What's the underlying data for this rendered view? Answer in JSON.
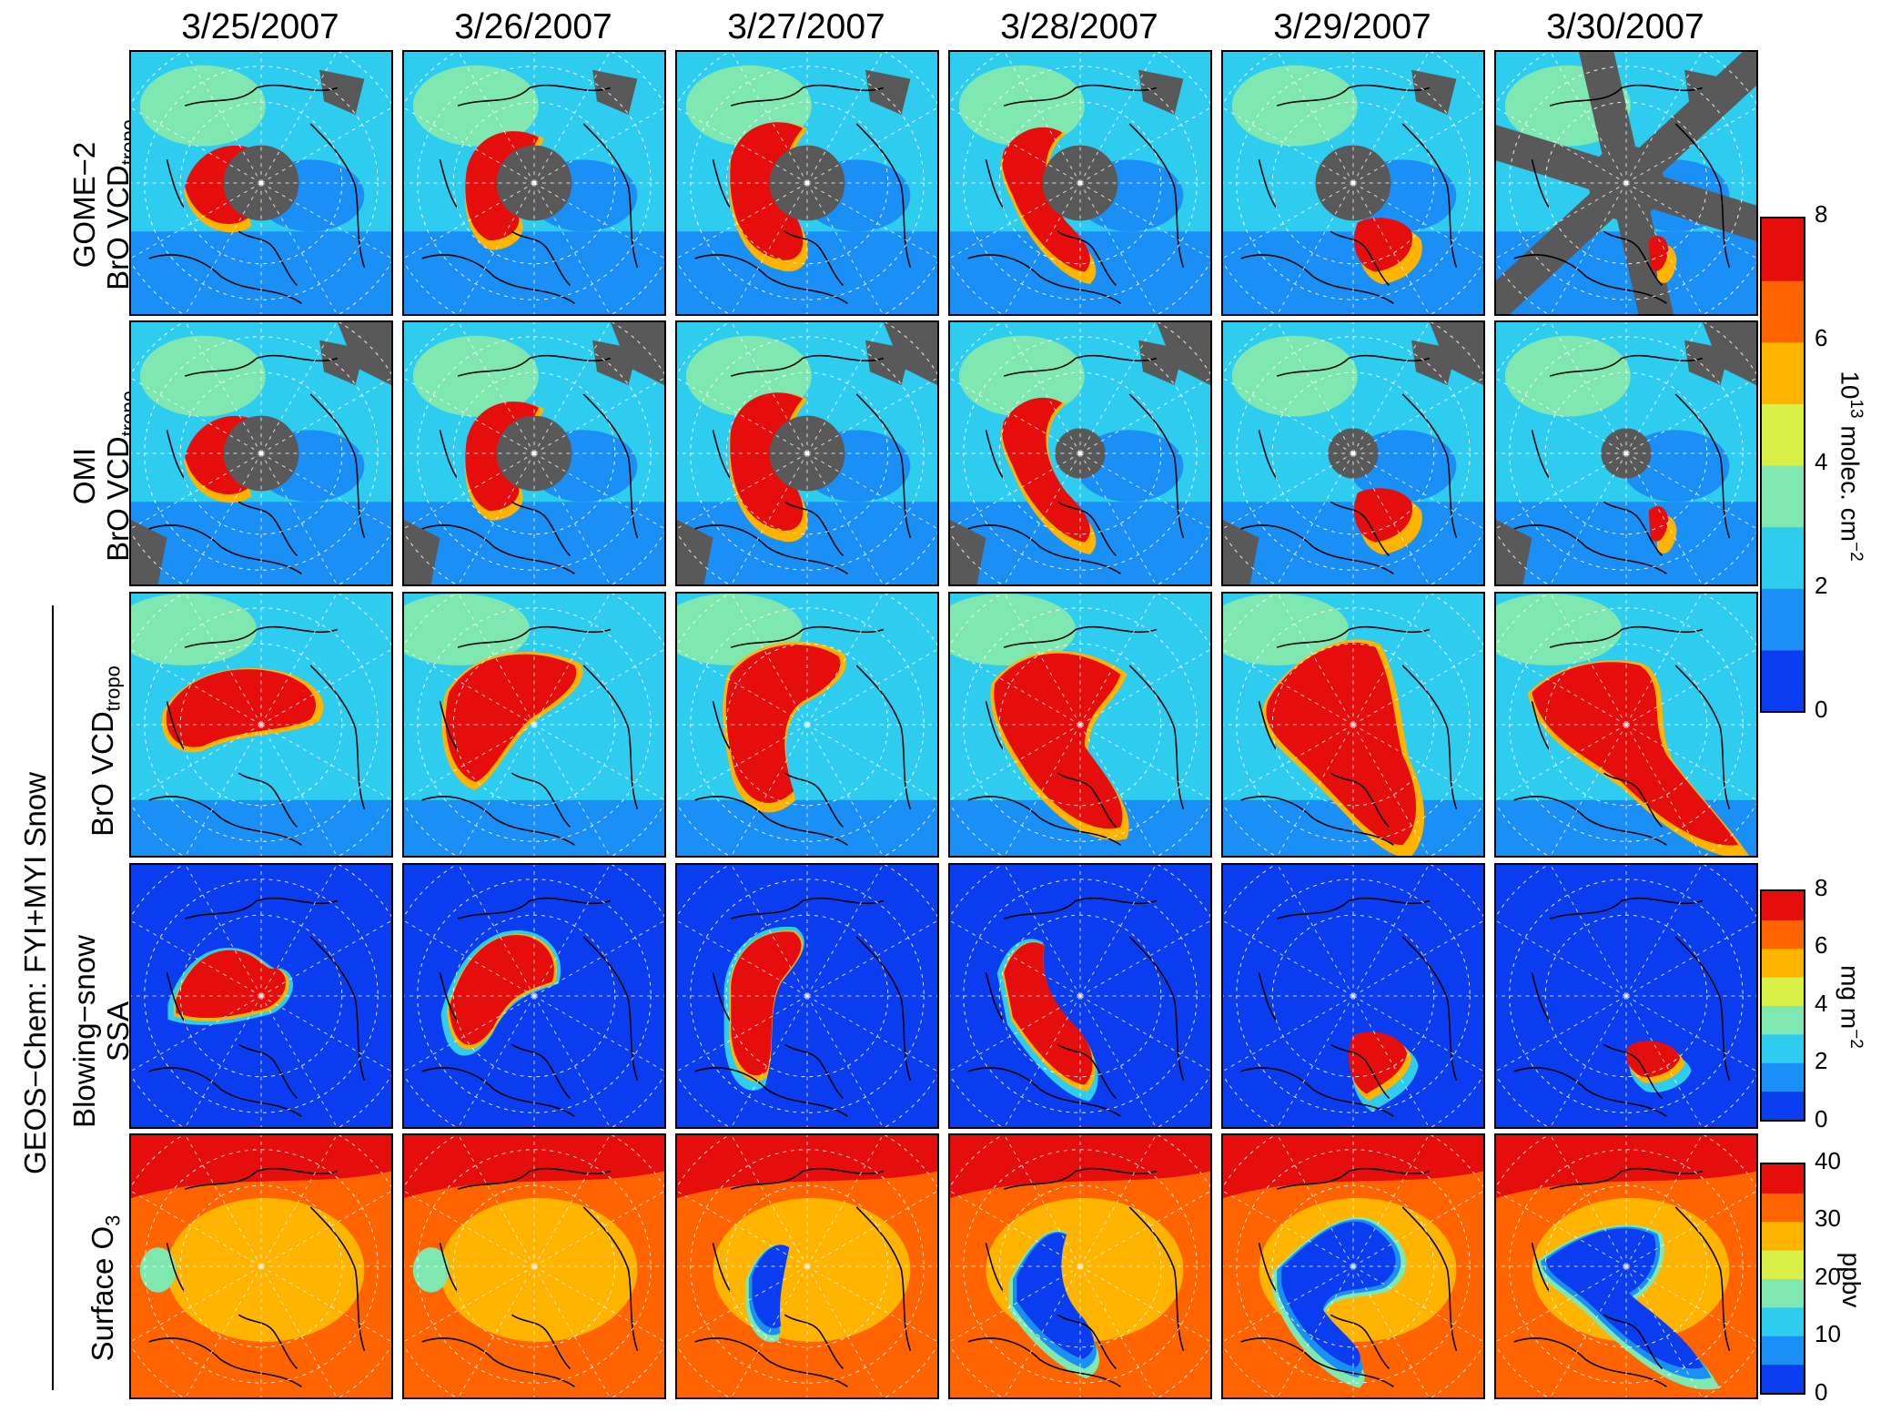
{
  "dates": [
    "3/25/2007",
    "3/26/2007",
    "3/27/2007",
    "3/28/2007",
    "3/29/2007",
    "3/30/2007"
  ],
  "rows": [
    {
      "line1": "GOME−2",
      "line2_main": "BrO VCD",
      "line2_sub": "tropo"
    },
    {
      "line1": "OMI",
      "line2_main": "BrO VCD",
      "line2_sub": "tropo"
    },
    {
      "line1": "",
      "line2_main": "BrO VCD",
      "line2_sub": "tropo"
    },
    {
      "line1": "Blowing−snow",
      "line2_main": "SSA",
      "line2_sub": ""
    },
    {
      "line1": "",
      "line2_main": "Surface O",
      "line2_sub": "3"
    }
  ],
  "group_label": "GEOS−Chem: FYI+MYI Snow",
  "colorbars": [
    {
      "ticks": [
        "8",
        "6",
        "4",
        "2",
        "0"
      ],
      "unit_main": "10",
      "unit_sup": "13",
      "unit_rest": " molec. cm",
      "unit_sup2": "−2"
    },
    {
      "ticks": [
        "8",
        "6",
        "4",
        "2",
        "0"
      ],
      "unit_main": "mg m",
      "unit_sup": "−2"
    },
    {
      "ticks": [
        "40",
        "30",
        "20",
        "10",
        "0"
      ],
      "unit_main": "ppbv"
    }
  ],
  "colors": {
    "scale": [
      "#0a3cf0",
      "#1a8ff5",
      "#2ecdf0",
      "#7fe8b0",
      "#d9f046",
      "#ffb400",
      "#ff6400",
      "#e60d0d"
    ],
    "missing": "#595959"
  }
}
